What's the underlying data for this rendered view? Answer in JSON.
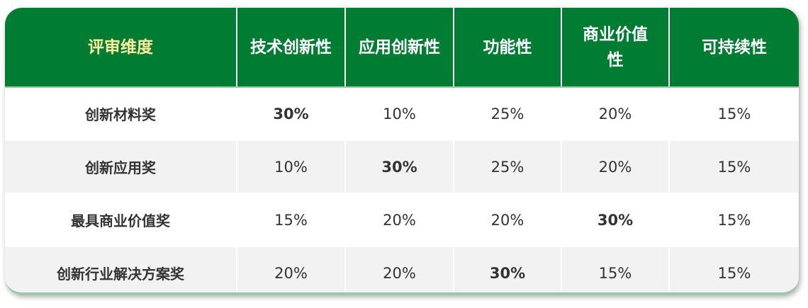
{
  "table": {
    "headers": [
      "评审维度",
      "技术创新性",
      "应用创新性",
      "功能性",
      "商业价值性",
      "可持续性"
    ],
    "rows": [
      {
        "name": "创新材料奖",
        "values": [
          "30%",
          "10%",
          "25%",
          "20%",
          "15%"
        ],
        "bold": 0
      },
      {
        "name": "创新应用奖",
        "values": [
          "10%",
          "30%",
          "25%",
          "20%",
          "15%"
        ],
        "bold": 1
      },
      {
        "name": "最具商业价值奖",
        "values": [
          "15%",
          "20%",
          "20%",
          "30%",
          "15%"
        ],
        "bold": 3
      },
      {
        "name": "创新行业解决方案奖",
        "values": [
          "20%",
          "20%",
          "30%",
          "15%",
          "15%"
        ],
        "bold": 2
      }
    ]
  },
  "colors": {
    "header_bg": "#007d32",
    "first_header_text": "#fdeba0",
    "alt_row": "#f2f2f2"
  }
}
